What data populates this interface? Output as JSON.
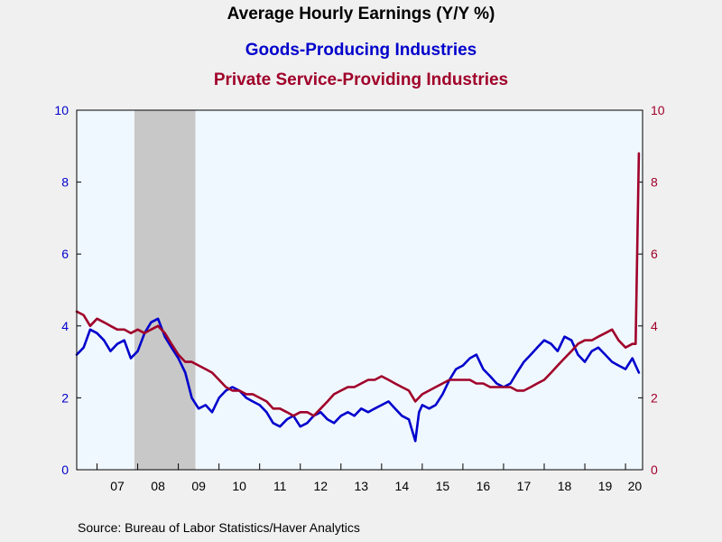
{
  "chart_data": {
    "type": "line",
    "title": "Average Hourly Earnings (Y/Y %)",
    "source": "Source:  Bureau of Labor Statistics/Haver Analytics",
    "x_tick_labels": [
      "07",
      "08",
      "09",
      "10",
      "11",
      "12",
      "13",
      "14",
      "15",
      "16",
      "17",
      "18",
      "19",
      "20"
    ],
    "x_range": [
      2006.5,
      2020.42
    ],
    "ylim": [
      0,
      10
    ],
    "yticks": [
      0,
      2,
      4,
      6,
      8,
      10
    ],
    "y_tick_labels": [
      "0",
      "2",
      "4",
      "6",
      "8",
      "10"
    ],
    "recession": [
      2007.92,
      2009.42
    ],
    "grid": false,
    "series": [
      {
        "name": "Goods-Producing Industries",
        "axis": "left",
        "color": "#0000cc",
        "x": [
          2006.5,
          2006.67,
          2006.83,
          2007.0,
          2007.17,
          2007.33,
          2007.5,
          2007.67,
          2007.83,
          2008.0,
          2008.17,
          2008.33,
          2008.5,
          2008.67,
          2008.83,
          2009.0,
          2009.17,
          2009.33,
          2009.5,
          2009.67,
          2009.83,
          2010.0,
          2010.17,
          2010.33,
          2010.5,
          2010.67,
          2010.83,
          2011.0,
          2011.17,
          2011.33,
          2011.5,
          2011.67,
          2011.83,
          2012.0,
          2012.17,
          2012.33,
          2012.5,
          2012.67,
          2012.83,
          2013.0,
          2013.17,
          2013.33,
          2013.5,
          2013.67,
          2013.83,
          2014.0,
          2014.17,
          2014.33,
          2014.5,
          2014.67,
          2014.83,
          2014.92,
          2015.0,
          2015.17,
          2015.33,
          2015.5,
          2015.67,
          2015.83,
          2016.0,
          2016.17,
          2016.33,
          2016.5,
          2016.67,
          2016.83,
          2017.0,
          2017.17,
          2017.33,
          2017.5,
          2017.67,
          2017.83,
          2018.0,
          2018.17,
          2018.33,
          2018.5,
          2018.67,
          2018.83,
          2019.0,
          2019.17,
          2019.33,
          2019.5,
          2019.67,
          2019.83,
          2020.0,
          2020.17,
          2020.33
        ],
        "values": [
          3.2,
          3.4,
          3.9,
          3.8,
          3.6,
          3.3,
          3.5,
          3.6,
          3.1,
          3.3,
          3.8,
          4.1,
          4.2,
          3.7,
          3.4,
          3.1,
          2.7,
          2.0,
          1.7,
          1.8,
          1.6,
          2.0,
          2.2,
          2.3,
          2.2,
          2.0,
          1.9,
          1.8,
          1.6,
          1.3,
          1.2,
          1.4,
          1.5,
          1.2,
          1.3,
          1.5,
          1.6,
          1.4,
          1.3,
          1.5,
          1.6,
          1.5,
          1.7,
          1.6,
          1.7,
          1.8,
          1.9,
          1.7,
          1.5,
          1.4,
          0.8,
          1.6,
          1.8,
          1.7,
          1.8,
          2.1,
          2.5,
          2.8,
          2.9,
          3.1,
          3.2,
          2.8,
          2.6,
          2.4,
          2.3,
          2.4,
          2.7,
          3.0,
          3.2,
          3.4,
          3.6,
          3.5,
          3.3,
          3.7,
          3.6,
          3.2,
          3.0,
          3.3,
          3.4,
          3.2,
          3.0,
          2.9,
          2.8,
          3.1,
          2.7
        ]
      },
      {
        "name": "Private Service-Providing Industries",
        "axis": "right",
        "color": "#a0002a",
        "x": [
          2006.5,
          2006.67,
          2006.83,
          2007.0,
          2007.17,
          2007.33,
          2007.5,
          2007.67,
          2007.83,
          2008.0,
          2008.17,
          2008.33,
          2008.5,
          2008.67,
          2008.83,
          2009.0,
          2009.17,
          2009.33,
          2009.5,
          2009.67,
          2009.83,
          2010.0,
          2010.17,
          2010.33,
          2010.5,
          2010.67,
          2010.83,
          2011.0,
          2011.17,
          2011.33,
          2011.5,
          2011.67,
          2011.83,
          2012.0,
          2012.17,
          2012.33,
          2012.5,
          2012.67,
          2012.83,
          2013.0,
          2013.17,
          2013.33,
          2013.5,
          2013.67,
          2013.83,
          2014.0,
          2014.17,
          2014.33,
          2014.5,
          2014.67,
          2014.83,
          2015.0,
          2015.17,
          2015.33,
          2015.5,
          2015.67,
          2015.83,
          2016.0,
          2016.17,
          2016.33,
          2016.5,
          2016.67,
          2016.83,
          2017.0,
          2017.17,
          2017.33,
          2017.5,
          2017.67,
          2017.83,
          2018.0,
          2018.17,
          2018.33,
          2018.5,
          2018.67,
          2018.83,
          2019.0,
          2019.17,
          2019.33,
          2019.5,
          2019.67,
          2019.83,
          2020.0,
          2020.17,
          2020.25,
          2020.33
        ],
        "values": [
          4.4,
          4.3,
          4.0,
          4.2,
          4.1,
          4.0,
          3.9,
          3.9,
          3.8,
          3.9,
          3.8,
          3.9,
          4.0,
          3.8,
          3.5,
          3.2,
          3.0,
          3.0,
          2.9,
          2.8,
          2.7,
          2.5,
          2.3,
          2.2,
          2.2,
          2.1,
          2.1,
          2.0,
          1.9,
          1.7,
          1.7,
          1.6,
          1.5,
          1.6,
          1.6,
          1.5,
          1.7,
          1.9,
          2.1,
          2.2,
          2.3,
          2.3,
          2.4,
          2.5,
          2.5,
          2.6,
          2.5,
          2.4,
          2.3,
          2.2,
          1.9,
          2.1,
          2.2,
          2.3,
          2.4,
          2.5,
          2.5,
          2.5,
          2.5,
          2.4,
          2.4,
          2.3,
          2.3,
          2.3,
          2.3,
          2.2,
          2.2,
          2.3,
          2.4,
          2.5,
          2.7,
          2.9,
          3.1,
          3.3,
          3.5,
          3.6,
          3.6,
          3.7,
          3.8,
          3.9,
          3.6,
          3.4,
          3.5,
          3.5,
          8.8
        ]
      }
    ]
  }
}
